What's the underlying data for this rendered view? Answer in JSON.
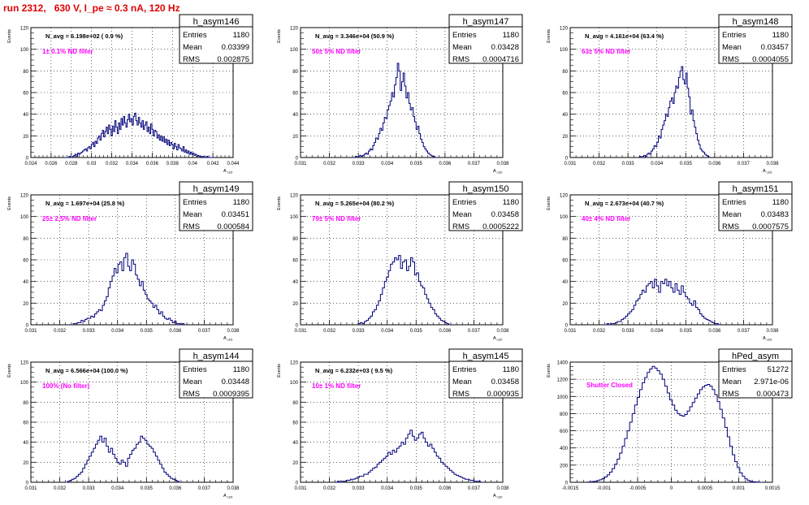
{
  "title": "run 2312,   630 V, I_pe ≈ 0.3 nA, 120 Hz",
  "chart_data": [
    {
      "type": "histogram",
      "name": "h_asym146",
      "navg": "N_avg = 6.198e+02 ( 0.9 %)",
      "filter": "1± 0.1% ND filter",
      "stats": [
        [
          "Entries",
          "1180"
        ],
        [
          "Mean",
          "0.03399"
        ],
        [
          "RMS",
          "0.002875"
        ]
      ],
      "ylabel": "Events",
      "xlabel": "A_LED",
      "xlim": [
        0.024,
        0.044
      ],
      "ylim": [
        0,
        120
      ],
      "xticks": [
        "0.024",
        "0.026",
        "0.028",
        "0.03",
        "0.032",
        "0.034",
        "0.036",
        "0.038",
        "0.04",
        "0.042",
        "0.044"
      ],
      "yticks": [
        "0",
        "20",
        "40",
        "60",
        "80",
        "100",
        "120"
      ],
      "grid": true,
      "bins": {
        "x0": 0.0274,
        "x1": 0.0421,
        "values": [
          0,
          0,
          0,
          1,
          0,
          0,
          1,
          2,
          3,
          1,
          4,
          3,
          4,
          5,
          6,
          7,
          8,
          6,
          9,
          10,
          8,
          12,
          14,
          10,
          15,
          13,
          18,
          20,
          16,
          22,
          25,
          19,
          24,
          28,
          22,
          30,
          26,
          20,
          29,
          24,
          34,
          28,
          22,
          32,
          26,
          36,
          30,
          38,
          32,
          28,
          35,
          40,
          33,
          36,
          30,
          38,
          41,
          34,
          30,
          37,
          32,
          28,
          34,
          26,
          30,
          33,
          24,
          28,
          22,
          31,
          26,
          20,
          25,
          24,
          18,
          21,
          16,
          20,
          15,
          19,
          14,
          17,
          12,
          16,
          11,
          14,
          12,
          8,
          13,
          10,
          7,
          12,
          9,
          8,
          6,
          10,
          5,
          7,
          4,
          6,
          3,
          5,
          3,
          4,
          2,
          3,
          1,
          2,
          1,
          1,
          0,
          1,
          0,
          0,
          1,
          0,
          0,
          0,
          0,
          0
        ]
      }
    },
    {
      "type": "histogram",
      "name": "h_asym147",
      "navg": "N_avg = 3.346e+04 (50.9 %)",
      "filter": "50± 5% ND filter",
      "stats": [
        [
          "Entries",
          "1180"
        ],
        [
          "Mean",
          "0.03428"
        ],
        [
          "RMS",
          "0.0004716"
        ]
      ],
      "ylabel": "Events",
      "xlabel": "A_LED",
      "xlim": [
        0.031,
        0.038
      ],
      "ylim": [
        0,
        120
      ],
      "xticks": [
        "0.031",
        "0.032",
        "0.033",
        "0.034",
        "0.035",
        "0.036",
        "0.037",
        "0.038"
      ],
      "yticks": [
        "0",
        "20",
        "40",
        "60",
        "80",
        "100",
        "120"
      ],
      "grid": true,
      "bins": {
        "x0": 0.0329,
        "x1": 0.0357,
        "values": [
          1,
          0,
          1,
          2,
          1,
          2,
          3,
          4,
          3,
          6,
          8,
          7,
          11,
          14,
          18,
          17,
          22,
          27,
          25,
          32,
          37,
          36,
          44,
          48,
          52,
          60,
          56,
          67,
          74,
          87,
          80,
          62,
          70,
          78,
          66,
          55,
          60,
          50,
          44,
          46,
          38,
          33,
          26,
          29,
          22,
          17,
          14,
          10,
          8,
          6,
          4,
          3,
          2,
          1,
          1,
          0
        ]
      }
    },
    {
      "type": "histogram",
      "name": "h_asym148",
      "navg": "N_avg = 4.161e+04 (63.4 %)",
      "filter": "63± 5% ND filter",
      "stats": [
        [
          "Entries",
          "1180"
        ],
        [
          "Mean",
          "0.03457"
        ],
        [
          "RMS",
          "0.0004055"
        ]
      ],
      "ylabel": "Events",
      "xlabel": "A_LED",
      "xlim": [
        0.031,
        0.038
      ],
      "ylim": [
        0,
        120
      ],
      "xticks": [
        "0.031",
        "0.032",
        "0.033",
        "0.034",
        "0.035",
        "0.036",
        "0.037",
        "0.038"
      ],
      "yticks": [
        "0",
        "20",
        "40",
        "60",
        "80",
        "100",
        "120"
      ],
      "grid": true,
      "bins": {
        "x0": 0.0334,
        "x1": 0.0358,
        "values": [
          1,
          0,
          1,
          2,
          1,
          3,
          4,
          3,
          6,
          8,
          11,
          10,
          14,
          20,
          18,
          26,
          30,
          34,
          40,
          38,
          46,
          52,
          55,
          50,
          60,
          66,
          64,
          74,
          80,
          84,
          72,
          68,
          78,
          64,
          56,
          40,
          44,
          34,
          28,
          22,
          16,
          12,
          8,
          6,
          5,
          3,
          2,
          1
        ]
      }
    },
    {
      "type": "histogram",
      "name": "h_asym149",
      "navg": "N_avg = 1.697e+04 (25.8 %)",
      "filter": "25± 2.5% ND filter",
      "stats": [
        [
          "Entries",
          "1180"
        ],
        [
          "Mean",
          "0.03451"
        ],
        [
          "RMS",
          "0.000584"
        ]
      ],
      "ylabel": "Events",
      "xlabel": "A_LED",
      "xlim": [
        0.031,
        0.038
      ],
      "ylim": [
        0,
        120
      ],
      "xticks": [
        "0.031",
        "0.032",
        "0.033",
        "0.034",
        "0.035",
        "0.036",
        "0.037",
        "0.038"
      ],
      "yticks": [
        "0",
        "20",
        "40",
        "60",
        "80",
        "100",
        "120"
      ],
      "grid": true,
      "bins": {
        "x0": 0.0324,
        "x1": 0.0363,
        "values": [
          0,
          1,
          1,
          2,
          2,
          4,
          3,
          5,
          6,
          6,
          8,
          7,
          10,
          12,
          14,
          13,
          18,
          22,
          26,
          34,
          40,
          45,
          52,
          48,
          56,
          58,
          50,
          62,
          66,
          54,
          50,
          60,
          56,
          46,
          42,
          36,
          40,
          32,
          28,
          24,
          22,
          20,
          16,
          18,
          14,
          10,
          12,
          8,
          6,
          5,
          6,
          4,
          2,
          3,
          1,
          1,
          0,
          1
        ]
      }
    },
    {
      "type": "histogram",
      "name": "h_asym150",
      "navg": "N_avg = 5.265e+04 (80.2 %)",
      "filter": "79± 5% ND filter",
      "stats": [
        [
          "Entries",
          "1180"
        ],
        [
          "Mean",
          "0.03458"
        ],
        [
          "RMS",
          "0.0005222"
        ]
      ],
      "ylabel": "Events",
      "xlabel": "A_LED",
      "xlim": [
        0.031,
        0.038
      ],
      "ylim": [
        0,
        120
      ],
      "xticks": [
        "0.031",
        "0.032",
        "0.033",
        "0.034",
        "0.035",
        "0.036",
        "0.037",
        "0.038"
      ],
      "yticks": [
        "0",
        "20",
        "40",
        "60",
        "80",
        "100",
        "120"
      ],
      "grid": true,
      "bins": {
        "x0": 0.033,
        "x1": 0.0362,
        "values": [
          1,
          2,
          1,
          3,
          4,
          6,
          8,
          12,
          14,
          18,
          22,
          28,
          34,
          40,
          44,
          50,
          56,
          58,
          62,
          60,
          64,
          52,
          58,
          60,
          50,
          54,
          62,
          58,
          46,
          48,
          40,
          36,
          34,
          28,
          24,
          20,
          16,
          14,
          10,
          8,
          6,
          4,
          3,
          2,
          1,
          0
        ]
      }
    },
    {
      "type": "histogram",
      "name": "h_asym151",
      "navg": "N_avg = 2.673e+04 (40.7 %)",
      "filter": "40± 4% ND filter",
      "stats": [
        [
          "Entries",
          "1180"
        ],
        [
          "Mean",
          "0.03483"
        ],
        [
          "RMS",
          "0.0007575"
        ]
      ],
      "ylabel": "Events",
      "xlabel": "A_LED",
      "xlim": [
        0.031,
        0.038
      ],
      "ylim": [
        0,
        120
      ],
      "xticks": [
        "0.031",
        "0.032",
        "0.033",
        "0.034",
        "0.035",
        "0.036",
        "0.037",
        "0.038"
      ],
      "yticks": [
        "0",
        "20",
        "40",
        "60",
        "80",
        "100",
        "120"
      ],
      "grid": true,
      "bins": {
        "x0": 0.0322,
        "x1": 0.0362,
        "values": [
          0,
          1,
          0,
          1,
          1,
          2,
          3,
          3,
          5,
          6,
          8,
          10,
          12,
          14,
          18,
          22,
          24,
          28,
          32,
          30,
          36,
          38,
          40,
          34,
          42,
          36,
          30,
          40,
          38,
          42,
          36,
          40,
          34,
          30,
          38,
          32,
          28,
          36,
          30,
          26,
          24,
          20,
          18,
          22,
          16,
          14,
          10,
          8,
          6,
          5,
          4,
          3,
          2,
          1,
          1,
          0
        ]
      }
    },
    {
      "type": "histogram",
      "name": "h_asym144",
      "navg": "N_avg = 6.566e+04 (100.0 %)",
      "filter": "100% (No filter)",
      "stats": [
        [
          "Entries",
          "1180"
        ],
        [
          "Mean",
          "0.03448"
        ],
        [
          "RMS",
          "0.0009395"
        ]
      ],
      "ylabel": "Events",
      "xlabel": "A_LED",
      "xlim": [
        0.031,
        0.038
      ],
      "ylim": [
        0,
        120
      ],
      "xticks": [
        "0.031",
        "0.032",
        "0.033",
        "0.034",
        "0.035",
        "0.036",
        "0.037",
        "0.038"
      ],
      "yticks": [
        "0",
        "20",
        "40",
        "60",
        "80",
        "100",
        "120"
      ],
      "grid": true,
      "bins": {
        "x0": 0.0322,
        "x1": 0.0362,
        "values": [
          0,
          1,
          2,
          3,
          4,
          6,
          8,
          10,
          14,
          18,
          22,
          26,
          30,
          34,
          38,
          42,
          46,
          40,
          44,
          36,
          30,
          34,
          28,
          24,
          20,
          18,
          22,
          20,
          16,
          24,
          28,
          32,
          34,
          38,
          40,
          46,
          44,
          42,
          38,
          36,
          34,
          30,
          26,
          22,
          18,
          14,
          10,
          8,
          6,
          4,
          3,
          2,
          1,
          0
        ]
      }
    },
    {
      "type": "histogram",
      "name": "h_asym145",
      "navg": "N_avg = 6.232e+03 ( 9.5 %)",
      "filter": "10± 1% ND filter",
      "stats": [
        [
          "Entries",
          "1180"
        ],
        [
          "Mean",
          "0.03458"
        ],
        [
          "RMS",
          "0.000935"
        ]
      ],
      "ylabel": "Events",
      "xlabel": "A_LED",
      "xlim": [
        0.031,
        0.038
      ],
      "ylim": [
        0,
        120
      ],
      "xticks": [
        "0.031",
        "0.032",
        "0.033",
        "0.034",
        "0.035",
        "0.036",
        "0.037",
        "0.038"
      ],
      "yticks": [
        "0",
        "20",
        "40",
        "60",
        "80",
        "100",
        "120"
      ],
      "grid": true,
      "bins": {
        "x0": 0.0322,
        "x1": 0.0373,
        "values": [
          0,
          1,
          0,
          1,
          1,
          2,
          2,
          3,
          3,
          4,
          5,
          6,
          6,
          8,
          8,
          10,
          12,
          14,
          15,
          18,
          20,
          22,
          24,
          26,
          30,
          28,
          32,
          30,
          34,
          36,
          40,
          38,
          44,
          48,
          52,
          46,
          42,
          44,
          48,
          50,
          44,
          40,
          36,
          38,
          34,
          30,
          26,
          24,
          20,
          18,
          16,
          14,
          12,
          10,
          8,
          7,
          6,
          5,
          4,
          3,
          3,
          2,
          2,
          1,
          1,
          1,
          0
        ]
      }
    },
    {
      "type": "histogram",
      "name": "hPed_asym",
      "navg": "",
      "filter": "Shutter Closed",
      "stats": [
        [
          "Entries",
          "51272"
        ],
        [
          "Mean",
          "2.971e-06"
        ],
        [
          "RMS",
          "0.000473"
        ]
      ],
      "ylabel": "Events",
      "xlabel": "",
      "xlim": [
        -0.0015,
        0.0015
      ],
      "ylim": [
        0,
        1400
      ],
      "xticks": [
        "-0.0015",
        "-0.001",
        "-0.0005",
        "0",
        "0.0005",
        "0.001",
        "0.0015"
      ],
      "yticks": [
        "0",
        "200",
        "400",
        "600",
        "800",
        "1000",
        "1200",
        "1400"
      ],
      "grid": true,
      "bins": {
        "x0": -0.00125,
        "x1": 0.00135,
        "values": [
          2,
          4,
          8,
          12,
          20,
          30,
          44,
          62,
          86,
          118,
          160,
          210,
          270,
          340,
          420,
          510,
          600,
          700,
          800,
          900,
          990,
          1080,
          1160,
          1220,
          1280,
          1320,
          1350,
          1330,
          1300,
          1260,
          1200,
          1120,
          1040,
          960,
          900,
          840,
          800,
          780,
          770,
          790,
          830,
          880,
          930,
          980,
          1030,
          1080,
          1110,
          1130,
          1140,
          1120,
          1080,
          1020,
          940,
          850,
          750,
          640,
          530,
          420,
          320,
          240,
          170,
          110,
          70,
          40,
          22,
          12,
          6,
          3,
          1,
          0
        ]
      }
    }
  ]
}
